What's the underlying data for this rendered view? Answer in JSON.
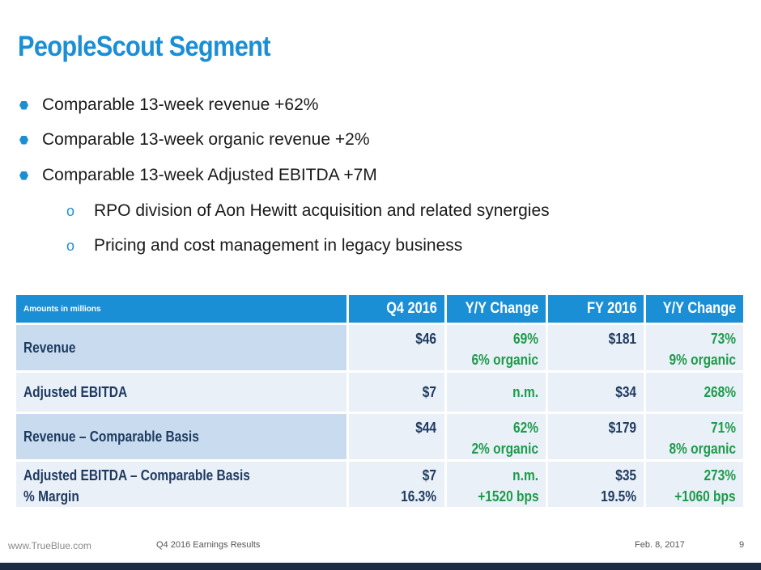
{
  "title": "PeopleScout Segment",
  "bullets": [
    "Comparable 13-week revenue +62%",
    "Comparable 13-week organic revenue +2%",
    "Comparable 13-week Adjusted EBITDA +7M"
  ],
  "sub_bullets": [
    "RPO division of Aon Hewitt acquisition and related synergies",
    "Pricing and cost management in legacy business"
  ],
  "sub_marker": "o",
  "table": {
    "header": {
      "label": "Amounts in millions",
      "q4": "Q4 2016",
      "q4_change": "Y/Y Change",
      "fy": "FY 2016",
      "fy_change": "Y/Y Change"
    },
    "rows": [
      {
        "label": "Revenue",
        "q4": "$46",
        "q4_change_1": "69%",
        "q4_change_2": "6% organic",
        "fy": "$181",
        "fy_change_1": "73%",
        "fy_change_2": "9% organic"
      },
      {
        "label": "Adjusted EBITDA",
        "q4": "$7",
        "q4_change_1": "n.m.",
        "fy": "$34",
        "fy_change_1": "268%"
      },
      {
        "label": "Revenue – Comparable Basis",
        "q4": "$44",
        "q4_change_1": "62%",
        "q4_change_2": "2% organic",
        "fy": "$179",
        "fy_change_1": "71%",
        "fy_change_2": "8% organic"
      },
      {
        "label": "Adjusted EBITDA  – Comparable Basis",
        "label_2": "% Margin",
        "q4": "$7",
        "q4_2": "16.3%",
        "q4_change_1": "n.m.",
        "q4_change_2": "+1520 bps",
        "fy": "$35",
        "fy_2": "19.5%",
        "fy_change_1": "273%",
        "fy_change_2": "+1060 bps"
      }
    ]
  },
  "footer": {
    "website": "www.TrueBlue.com",
    "doc_title": "Q4 2016 Earnings Results",
    "date": "Feb. 8, 2017",
    "page": "9"
  },
  "colors": {
    "accent": "#1b8fd6",
    "positive": "#1e9b4a",
    "header_text": "#1e3a5f",
    "footer_bar": "#1c2b44"
  }
}
